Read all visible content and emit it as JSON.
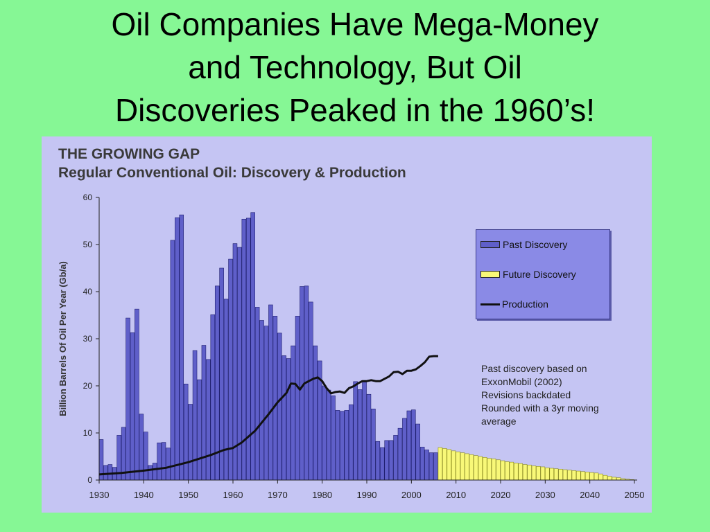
{
  "slide": {
    "title_lines": [
      "Oil Companies Have Mega-Money",
      "and Technology, But Oil",
      "Discoveries Peaked in the 1960’s!"
    ]
  },
  "colors": {
    "background": "#86f795",
    "panel": "#c5c5f3",
    "past_discovery": "#5f5fc9",
    "future_discovery": "#f8f878",
    "production": "#111111",
    "legend_bg": "#8a8ae6"
  },
  "chart_data": {
    "type": "bar",
    "title": "THE GROWING GAP",
    "subtitle": "Regular Conventional Oil: Discovery & Production",
    "ylabel": "Billion Barrels Of Oil Per Year (Gb/a)",
    "xlabel": "",
    "ylim": [
      0,
      60
    ],
    "xlim": [
      1930,
      2050
    ],
    "y_ticks": [
      0,
      10,
      20,
      30,
      40,
      50,
      60
    ],
    "x_ticks": [
      1930,
      1940,
      1950,
      1960,
      1970,
      1980,
      1990,
      2000,
      2010,
      2020,
      2030,
      2040,
      2050
    ],
    "grid": false,
    "legend_position": "right",
    "legend": [
      {
        "label": "Past Discovery",
        "kind": "bar",
        "color": "#5f5fc9"
      },
      {
        "label": "Future Discovery",
        "kind": "bar",
        "color": "#f8f878"
      },
      {
        "label": "Production",
        "kind": "line",
        "color": "#111111"
      }
    ],
    "series": [
      {
        "name": "Past Discovery",
        "x": [
          1930,
          1931,
          1932,
          1933,
          1934,
          1935,
          1936,
          1937,
          1938,
          1939,
          1940,
          1941,
          1942,
          1943,
          1944,
          1945,
          1946,
          1947,
          1948,
          1949,
          1950,
          1951,
          1952,
          1953,
          1954,
          1955,
          1956,
          1957,
          1958,
          1959,
          1960,
          1961,
          1962,
          1963,
          1964,
          1965,
          1966,
          1967,
          1968,
          1969,
          1970,
          1971,
          1972,
          1973,
          1974,
          1975,
          1976,
          1977,
          1978,
          1979,
          1980,
          1981,
          1982,
          1983,
          1984,
          1985,
          1986,
          1987,
          1988,
          1989,
          1990,
          1991,
          1992,
          1993,
          1994,
          1995,
          1996,
          1997,
          1998,
          1999,
          2000,
          2001,
          2002,
          2003,
          2004,
          2005
        ],
        "values": [
          8.6,
          3.1,
          3.3,
          2.7,
          9.5,
          11.2,
          34.4,
          31.3,
          36.3,
          14.0,
          10.2,
          3.1,
          3.6,
          7.9,
          8.0,
          6.8,
          50.9,
          55.7,
          56.3,
          20.4,
          16.1,
          27.5,
          21.3,
          28.6,
          25.6,
          35.1,
          41.2,
          45.0,
          38.4,
          46.9,
          50.2,
          49.4,
          55.4,
          55.6,
          56.8,
          36.7,
          33.9,
          32.7,
          37.2,
          34.8,
          31.2,
          26.4,
          25.8,
          28.5,
          34.8,
          41.1,
          41.2,
          37.8,
          28.5,
          25.3,
          20.0,
          19.1,
          17.9,
          14.8,
          14.6,
          14.8,
          16.0,
          20.9,
          19.2,
          20.8,
          18.2,
          15.1,
          8.2,
          6.9,
          8.4,
          8.4,
          9.5,
          11.0,
          13.1,
          14.7,
          14.9,
          11.9,
          7.0,
          6.4,
          5.8,
          5.8
        ]
      },
      {
        "name": "Future Discovery",
        "x": [
          2006,
          2007,
          2008,
          2009,
          2010,
          2011,
          2012,
          2013,
          2014,
          2015,
          2016,
          2017,
          2018,
          2019,
          2020,
          2021,
          2022,
          2023,
          2024,
          2025,
          2026,
          2027,
          2028,
          2029,
          2030,
          2031,
          2032,
          2033,
          2034,
          2035,
          2036,
          2037,
          2038,
          2039,
          2040,
          2041,
          2042,
          2043,
          2044,
          2045,
          2046,
          2047,
          2048,
          2049
        ],
        "values": [
          6.9,
          6.7,
          6.5,
          6.2,
          6.0,
          5.8,
          5.6,
          5.4,
          5.2,
          5.0,
          4.8,
          4.6,
          4.5,
          4.3,
          4.1,
          3.9,
          3.8,
          3.6,
          3.5,
          3.3,
          3.2,
          3.0,
          2.9,
          2.8,
          2.6,
          2.5,
          2.4,
          2.3,
          2.2,
          2.1,
          2.0,
          1.9,
          1.8,
          1.7,
          1.6,
          1.5,
          1.3,
          1.0,
          0.8,
          0.6,
          0.5,
          0.3,
          0.2,
          0.1
        ]
      },
      {
        "name": "Production",
        "type": "line",
        "x": [
          1930,
          1935,
          1940,
          1945,
          1950,
          1955,
          1958,
          1960,
          1962,
          1965,
          1968,
          1970,
          1972,
          1973,
          1974,
          1975,
          1976,
          1977,
          1978,
          1979,
          1980,
          1981,
          1982,
          1983,
          1984,
          1985,
          1986,
          1987,
          1988,
          1989,
          1990,
          1991,
          1992,
          1993,
          1994,
          1995,
          1996,
          1997,
          1998,
          1999,
          2000,
          2001,
          2002,
          2003,
          2004,
          2005,
          2006
        ],
        "values": [
          1.2,
          1.5,
          2.0,
          2.6,
          3.8,
          5.3,
          6.4,
          6.8,
          8.0,
          10.5,
          14.0,
          16.5,
          18.5,
          20.5,
          20.4,
          19.2,
          20.5,
          21.0,
          21.5,
          21.8,
          21.0,
          19.5,
          18.4,
          18.7,
          18.8,
          18.5,
          19.5,
          19.9,
          20.5,
          21.0,
          21.0,
          21.2,
          21.0,
          21.0,
          21.5,
          22.0,
          22.9,
          23.0,
          22.5,
          23.2,
          23.2,
          23.5,
          24.2,
          25.0,
          26.2,
          26.3,
          26.3
        ]
      }
    ],
    "annotation_lines": [
      "Past discovery based on",
      "ExxonMobil (2002)",
      "Revisions backdated",
      "Rounded with a 3yr moving",
      "average"
    ]
  }
}
